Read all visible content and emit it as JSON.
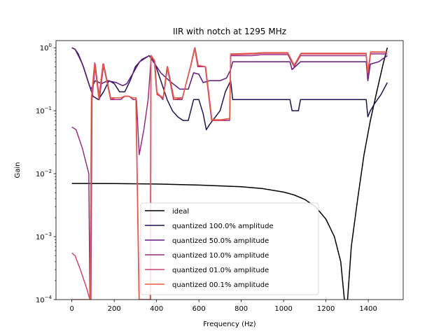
{
  "chart_data": {
    "type": "line",
    "title": "IIR with notch at 1295 MHz",
    "xlabel": "Frequency (Hz)",
    "ylabel": "Gain",
    "xlim": [
      -75,
      1565
    ],
    "ylim": [
      0.0001,
      1.3
    ],
    "yscale": "log",
    "xticks": [
      0,
      200,
      400,
      600,
      800,
      1000,
      1200,
      1400
    ],
    "yticks": [
      {
        "value": 0.0001,
        "base": "10",
        "exp": "−4"
      },
      {
        "value": 0.001,
        "base": "10",
        "exp": "−3"
      },
      {
        "value": 0.01,
        "base": "10",
        "exp": "−2"
      },
      {
        "value": 0.1,
        "base": "10",
        "exp": "−1"
      },
      {
        "value": 1,
        "base": "10",
        "exp": "0"
      }
    ],
    "grid": false,
    "legend_position": "lower center",
    "series": [
      {
        "name": "ideal",
        "color": "#000000",
        "points": [
          [
            0,
            0.007
          ],
          [
            200,
            0.00698
          ],
          [
            400,
            0.00685
          ],
          [
            600,
            0.0066
          ],
          [
            800,
            0.0062
          ],
          [
            900,
            0.0058
          ],
          [
            1000,
            0.0051
          ],
          [
            1050,
            0.0046
          ],
          [
            1100,
            0.0039
          ],
          [
            1150,
            0.003
          ],
          [
            1200,
            0.0019
          ],
          [
            1240,
            0.001
          ],
          [
            1270,
            0.0004
          ],
          [
            1290,
            8e-05
          ],
          [
            1300,
            8e-05
          ],
          [
            1320,
            0.0007
          ],
          [
            1350,
            0.004
          ],
          [
            1380,
            0.02
          ],
          [
            1410,
            0.07
          ],
          [
            1440,
            0.2
          ],
          [
            1470,
            0.55
          ],
          [
            1490,
            1.0
          ]
        ]
      },
      {
        "name": "quantized 100.0% amplitude",
        "color": "#221150",
        "points": [
          [
            0,
            1.0
          ],
          [
            15,
            0.95
          ],
          [
            30,
            0.8
          ],
          [
            50,
            0.55
          ],
          [
            75,
            0.3
          ],
          [
            100,
            0.17
          ],
          [
            125,
            0.15
          ],
          [
            150,
            0.2
          ],
          [
            175,
            0.3
          ],
          [
            200,
            0.27
          ],
          [
            225,
            0.2
          ],
          [
            250,
            0.2
          ],
          [
            275,
            0.3
          ],
          [
            300,
            0.5
          ],
          [
            330,
            0.65
          ],
          [
            365,
            0.75
          ],
          [
            390,
            0.6
          ],
          [
            420,
            0.3
          ],
          [
            450,
            0.15
          ],
          [
            475,
            0.1
          ],
          [
            500,
            0.08
          ],
          [
            525,
            0.07
          ],
          [
            550,
            0.07
          ],
          [
            575,
            0.15
          ],
          [
            600,
            0.15
          ],
          [
            620,
            0.09
          ],
          [
            635,
            0.05
          ],
          [
            650,
            0.06
          ],
          [
            700,
            0.1
          ],
          [
            725,
            0.2
          ],
          [
            750,
            0.3
          ],
          [
            760,
            0.15
          ],
          [
            800,
            0.15
          ],
          [
            1030,
            0.15
          ],
          [
            1040,
            0.1
          ],
          [
            1070,
            0.1
          ],
          [
            1080,
            0.15
          ],
          [
            1390,
            0.15
          ],
          [
            1398,
            0.08
          ],
          [
            1410,
            0.1
          ],
          [
            1430,
            0.13
          ],
          [
            1460,
            0.18
          ],
          [
            1490,
            0.28
          ]
        ]
      },
      {
        "name": "quantized 50.0% amplitude",
        "color": "#5f187f",
        "points": [
          [
            0,
            1.0
          ],
          [
            15,
            0.95
          ],
          [
            35,
            0.7
          ],
          [
            55,
            0.5
          ],
          [
            80,
            0.27
          ],
          [
            90,
            0.22
          ],
          [
            110,
            0.3
          ],
          [
            140,
            0.27
          ],
          [
            170,
            0.3
          ],
          [
            210,
            0.28
          ],
          [
            240,
            0.25
          ],
          [
            260,
            0.27
          ],
          [
            290,
            0.4
          ],
          [
            320,
            0.6
          ],
          [
            365,
            0.75
          ],
          [
            385,
            0.6
          ],
          [
            420,
            0.4
          ],
          [
            460,
            0.3
          ],
          [
            510,
            0.22
          ],
          [
            550,
            0.22
          ],
          [
            575,
            0.4
          ],
          [
            600,
            0.38
          ],
          [
            620,
            0.28
          ],
          [
            650,
            0.3
          ],
          [
            700,
            0.3
          ],
          [
            730,
            0.33
          ],
          [
            750,
            0.45
          ],
          [
            760,
            0.6
          ],
          [
            1030,
            0.6
          ],
          [
            1040,
            0.45
          ],
          [
            1080,
            0.6
          ],
          [
            1390,
            0.6
          ],
          [
            1398,
            0.3
          ],
          [
            1410,
            0.55
          ],
          [
            1450,
            0.6
          ],
          [
            1490,
            0.75
          ]
        ]
      },
      {
        "name": "quantized 10.0% amplitude",
        "color": "#982d80",
        "points": [
          [
            0,
            0.055
          ],
          [
            20,
            0.05
          ],
          [
            50,
            0.025
          ],
          [
            80,
            0.01
          ],
          [
            85,
            0.0001
          ],
          [
            90,
            0.0001
          ],
          [
            95,
            0.15
          ],
          [
            110,
            0.55
          ],
          [
            130,
            0.15
          ],
          [
            150,
            0.55
          ],
          [
            185,
            0.15
          ],
          [
            205,
            0.15
          ],
          [
            230,
            0.15
          ],
          [
            250,
            0.17
          ],
          [
            270,
            0.17
          ],
          [
            290,
            0.15
          ],
          [
            305,
            0.15
          ],
          [
            318,
            0.02
          ],
          [
            340,
            0.05
          ],
          [
            360,
            0.15
          ],
          [
            375,
            0.75
          ],
          [
            390,
            0.6
          ],
          [
            400,
            0.2
          ],
          [
            430,
            0.15
          ],
          [
            450,
            0.5
          ],
          [
            480,
            0.15
          ],
          [
            520,
            0.15
          ],
          [
            560,
            0.5
          ],
          [
            580,
            1.0
          ],
          [
            595,
            0.5
          ],
          [
            630,
            0.5
          ],
          [
            660,
            0.07
          ],
          [
            700,
            0.07
          ],
          [
            745,
            0.07
          ],
          [
            750,
            0.75
          ],
          [
            850,
            0.75
          ],
          [
            900,
            0.78
          ],
          [
            1020,
            0.78
          ],
          [
            1050,
            0.5
          ],
          [
            1080,
            0.75
          ],
          [
            1390,
            0.75
          ],
          [
            1398,
            0.35
          ],
          [
            1410,
            0.8
          ],
          [
            1490,
            0.8
          ]
        ]
      },
      {
        "name": "quantized 01.0% amplitude",
        "color": "#d3436e",
        "points": [
          [
            0,
            0.00055
          ],
          [
            15,
            0.0005
          ],
          [
            40,
            0.0003
          ],
          [
            70,
            0.00015
          ],
          [
            85,
            0.0001
          ],
          [
            88,
            0.0001
          ],
          [
            93,
            0.15
          ],
          [
            108,
            0.58
          ],
          [
            128,
            0.15
          ],
          [
            148,
            0.55
          ],
          [
            183,
            0.15
          ],
          [
            203,
            0.16
          ],
          [
            232,
            0.16
          ],
          [
            248,
            0.17
          ],
          [
            268,
            0.17
          ],
          [
            288,
            0.16
          ],
          [
            303,
            0.16
          ],
          [
            318,
            0.0001
          ],
          [
            370,
            0.0001
          ],
          [
            373,
            0.75
          ],
          [
            392,
            0.6
          ],
          [
            402,
            0.18
          ],
          [
            432,
            0.16
          ],
          [
            452,
            0.5
          ],
          [
            482,
            0.15
          ],
          [
            522,
            0.16
          ],
          [
            562,
            0.52
          ],
          [
            582,
            1.0
          ],
          [
            597,
            0.52
          ],
          [
            632,
            0.5
          ],
          [
            662,
            0.07
          ],
          [
            702,
            0.07
          ],
          [
            746,
            0.075
          ],
          [
            750,
            0.78
          ],
          [
            860,
            0.8
          ],
          [
            900,
            0.82
          ],
          [
            1020,
            0.82
          ],
          [
            1050,
            0.52
          ],
          [
            1082,
            0.8
          ],
          [
            1390,
            0.8
          ],
          [
            1398,
            0.4
          ],
          [
            1412,
            0.85
          ],
          [
            1490,
            0.85
          ]
        ]
      },
      {
        "name": "quantized 00.1% amplitude",
        "color": "#e75c45",
        "points": [
          [
            0,
            0.0001
          ],
          [
            80,
            0.0001
          ],
          [
            86,
            0.0001
          ],
          [
            92,
            0.16
          ],
          [
            107,
            0.56
          ],
          [
            127,
            0.16
          ],
          [
            147,
            0.56
          ],
          [
            182,
            0.16
          ],
          [
            202,
            0.16
          ],
          [
            232,
            0.16
          ],
          [
            247,
            0.17
          ],
          [
            267,
            0.17
          ],
          [
            287,
            0.16
          ],
          [
            302,
            0.16
          ],
          [
            317,
            0.0001
          ],
          [
            372,
            0.0001
          ],
          [
            374,
            0.76
          ],
          [
            392,
            0.62
          ],
          [
            402,
            0.19
          ],
          [
            432,
            0.16
          ],
          [
            452,
            0.5
          ],
          [
            482,
            0.16
          ],
          [
            522,
            0.16
          ],
          [
            562,
            0.53
          ],
          [
            581,
            1.0
          ],
          [
            596,
            0.53
          ],
          [
            631,
            0.5
          ],
          [
            661,
            0.072
          ],
          [
            701,
            0.072
          ],
          [
            746,
            0.075
          ],
          [
            750,
            0.8
          ],
          [
            860,
            0.82
          ],
          [
            905,
            0.84
          ],
          [
            1020,
            0.84
          ],
          [
            1050,
            0.53
          ],
          [
            1082,
            0.82
          ],
          [
            1390,
            0.82
          ],
          [
            1397,
            0.4
          ],
          [
            1411,
            0.86
          ],
          [
            1490,
            0.86
          ]
        ]
      }
    ]
  }
}
